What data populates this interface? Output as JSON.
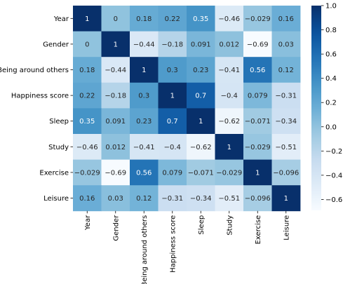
{
  "chart_data": {
    "type": "heatmap",
    "title": "",
    "xlabel": "",
    "ylabel": "",
    "rows": [
      "Year",
      "Gender",
      "Being around others",
      "Happiness score",
      "Sleep",
      "Study",
      "Exercise",
      "Leisure"
    ],
    "columns": [
      "Year",
      "Gender",
      "Being around others",
      "Happiness score",
      "Sleep",
      "Study",
      "Exercise",
      "Leisure"
    ],
    "values": [
      [
        1,
        0,
        0.18,
        0.22,
        0.35,
        -0.46,
        -0.029,
        0.16
      ],
      [
        0,
        1,
        -0.44,
        -0.18,
        0.091,
        0.012,
        -0.69,
        0.03
      ],
      [
        0.18,
        -0.44,
        1,
        0.3,
        0.23,
        -0.41,
        0.56,
        0.12
      ],
      [
        0.22,
        -0.18,
        0.3,
        1,
        0.7,
        -0.4,
        0.079,
        -0.31
      ],
      [
        0.35,
        0.091,
        0.23,
        0.7,
        1,
        -0.62,
        -0.071,
        -0.34
      ],
      [
        -0.46,
        0.012,
        -0.41,
        -0.4,
        -0.62,
        1,
        -0.029,
        -0.51
      ],
      [
        -0.029,
        -0.69,
        0.56,
        0.079,
        -0.071,
        -0.029,
        1,
        -0.096
      ],
      [
        0.16,
        0.03,
        0.12,
        -0.31,
        -0.34,
        -0.51,
        -0.096,
        1
      ]
    ],
    "colormap": "Blues",
    "color_range": [
      -0.69,
      1.0
    ],
    "colorbar_ticks": [
      1.0,
      0.8,
      0.6,
      0.4,
      0.2,
      0.0,
      -0.2,
      -0.4,
      -0.6
    ],
    "colorbar_tick_labels": [
      "1.0",
      "0.8",
      "0.6",
      "0.4",
      "0.2",
      "0.0",
      "−0.2",
      "−0.4",
      "−0.6"
    ],
    "legend_position": "right"
  }
}
